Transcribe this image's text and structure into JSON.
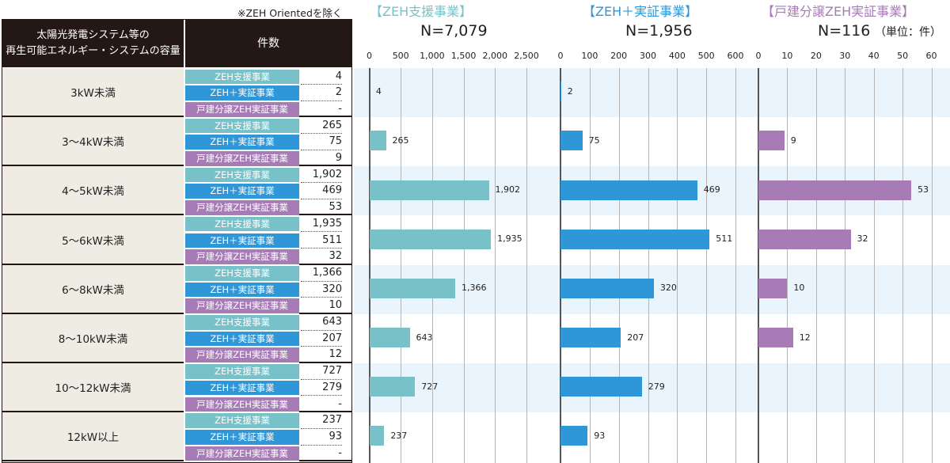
{
  "note": "※ZEH Orientedを除く",
  "unit_label": "（単位：件）",
  "colors": {
    "header_bg": "#231815",
    "category_bg": "#efece4",
    "band_bg": "#eaf4fc",
    "zeh": "#78c1c8",
    "zeh_plus": "#2f97d8",
    "kodate": "#a77cb6"
  },
  "table": {
    "header_left": [
      "太陽光発電システム等の",
      "再生可能エネルギー・システムの容量"
    ],
    "header_count": "件数"
  },
  "chart_data": {
    "type": "bar",
    "orientation": "horizontal",
    "categories": [
      "3kW未満",
      "3～4kW未満",
      "4～5kW未満",
      "5～6kW未満",
      "6～8kW未満",
      "8～10kW未満",
      "10～12kW未満",
      "12kW以上"
    ],
    "series": [
      {
        "name": "ZEH支援事業",
        "title": "【ZEH支援事業】",
        "n_label": "N=7,079",
        "values": [
          4,
          265,
          1902,
          1935,
          1366,
          643,
          727,
          237
        ],
        "labels": [
          "4",
          "265",
          "1,902",
          "1,935",
          "1,366",
          "643",
          "727",
          "237"
        ],
        "xlim": [
          0,
          2500
        ],
        "ticks": [
          0,
          500,
          1000,
          1500,
          2000,
          2500
        ],
        "tick_labels": [
          "0",
          "500",
          "1,000",
          "1,500",
          "2,000",
          "2,500"
        ]
      },
      {
        "name": "ZEH＋実証事業",
        "title": "【ZEH＋実証事業】",
        "n_label": "N=1,956",
        "values": [
          2,
          75,
          469,
          511,
          320,
          207,
          279,
          93
        ],
        "labels": [
          "2",
          "75",
          "469",
          "511",
          "320",
          "207",
          "279",
          "93"
        ],
        "xlim": [
          0,
          600
        ],
        "ticks": [
          0,
          100,
          200,
          300,
          400,
          500,
          600
        ],
        "tick_labels": [
          "0",
          "100",
          "200",
          "300",
          "400",
          "500",
          "600"
        ]
      },
      {
        "name": "戸建分譲ZEH実証事業",
        "title": "【戸建分譲ZEH実証事業】",
        "n_label": "N=116",
        "values": [
          null,
          9,
          53,
          32,
          10,
          12,
          null,
          null
        ],
        "labels": [
          "-",
          "9",
          "53",
          "32",
          "10",
          "12",
          "-",
          "-"
        ],
        "xlim": [
          0,
          60
        ],
        "ticks": [
          0,
          10,
          20,
          30,
          40,
          50,
          60
        ],
        "tick_labels": [
          "0",
          "10",
          "20",
          "30",
          "40",
          "50",
          "60"
        ]
      }
    ],
    "grid": true
  }
}
